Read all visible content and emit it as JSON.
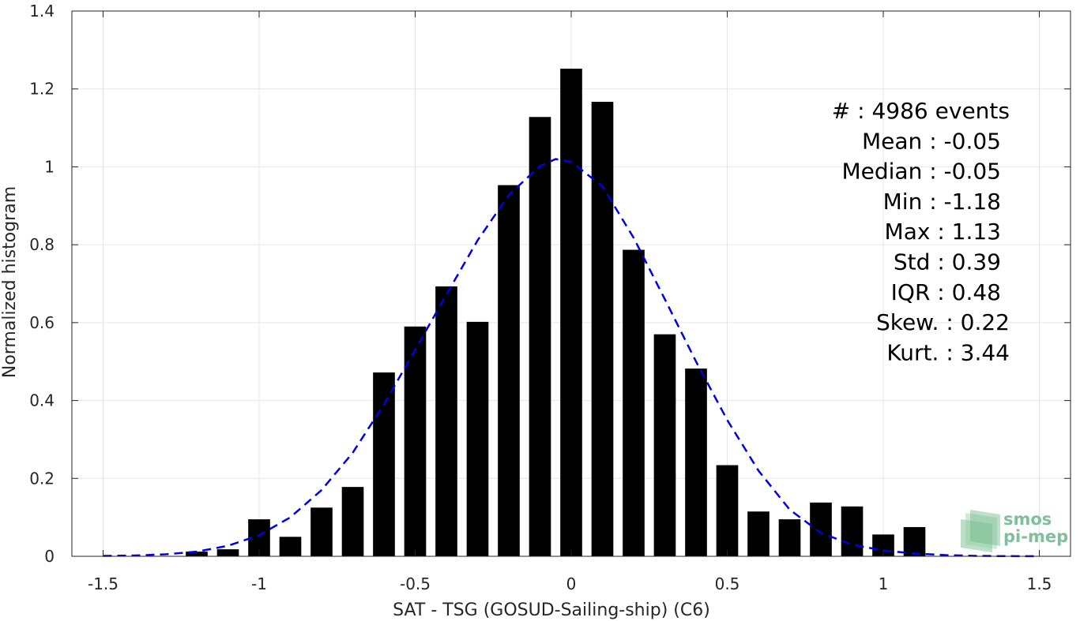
{
  "chart_data": {
    "type": "bar",
    "xlabel": "SAT - TSG (GOSUD-Sailing-ship) (C6)",
    "ylabel": "Normalized histogram",
    "xlim": [
      -1.6,
      1.6
    ],
    "ylim": [
      0,
      1.4
    ],
    "grid": true,
    "x_ticks": [
      -1.5,
      -1,
      -0.5,
      0,
      0.5,
      1,
      1.5
    ],
    "x_tick_labels": [
      "-1.5",
      "-1",
      "-0.5",
      "0",
      "0.5",
      "1",
      "1.5"
    ],
    "y_ticks": [
      0,
      0.2,
      0.4,
      0.6,
      0.8,
      1,
      1.2,
      1.4
    ],
    "y_tick_labels": [
      "0",
      "0.2",
      "0.4",
      "0.6",
      "0.8",
      "1",
      "1.2",
      "1.4"
    ],
    "bin_width": 0.1,
    "bar_color": "#000000",
    "series": [
      {
        "x": [
          -1.2,
          -1.1,
          -1.0,
          -0.9,
          -0.8,
          -0.7,
          -0.6,
          -0.5,
          -0.4,
          -0.3,
          -0.2,
          -0.1,
          0.0,
          0.1,
          0.2,
          0.3,
          0.4,
          0.5,
          0.6,
          0.7,
          0.8,
          0.9,
          1.0,
          1.1
        ],
        "values": [
          0.012,
          0.018,
          0.095,
          0.05,
          0.125,
          0.178,
          0.472,
          0.59,
          0.693,
          0.602,
          0.953,
          1.128,
          1.252,
          1.167,
          0.787,
          0.57,
          0.482,
          0.234,
          0.115,
          0.095,
          0.138,
          0.128,
          0.056,
          0.075
        ]
      }
    ],
    "fit_curve": {
      "style": "dashed",
      "color": "#0000e0",
      "x": [
        -1.5,
        -1.4,
        -1.3,
        -1.2,
        -1.1,
        -1.0,
        -0.9,
        -0.8,
        -0.7,
        -0.6,
        -0.5,
        -0.4,
        -0.3,
        -0.2,
        -0.1,
        -0.05,
        0.0,
        0.1,
        0.2,
        0.3,
        0.4,
        0.5,
        0.6,
        0.7,
        0.8,
        0.9,
        1.0,
        1.1,
        1.2,
        1.3,
        1.4,
        1.5
      ],
      "y": [
        0.001,
        0.002,
        0.005,
        0.012,
        0.027,
        0.054,
        0.1,
        0.17,
        0.266,
        0.39,
        0.53,
        0.672,
        0.811,
        0.928,
        1.002,
        1.02,
        1.013,
        0.95,
        0.818,
        0.66,
        0.5,
        0.35,
        0.22,
        0.12,
        0.06,
        0.03,
        0.015,
        0.007,
        0.003,
        0.001,
        0.0005,
        0.0002
      ]
    },
    "stats_box": [
      "#  : 4986 events",
      "Mean : -0.05",
      "Median : -0.05",
      "Min : -1.18",
      "Max : 1.13",
      "Std : 0.39",
      "IQR : 0.48",
      "Skew. : 0.22",
      "Kurt. : 3.44"
    ],
    "logo": {
      "line1": "smos",
      "line2": "pi-mep",
      "color": "#7fbf9a"
    }
  }
}
